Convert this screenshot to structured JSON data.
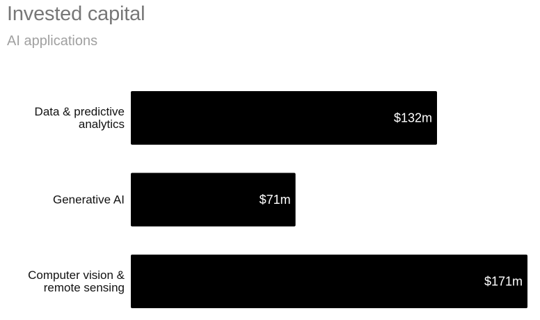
{
  "header": {
    "title": "Invested capital",
    "subtitle": "AI applications"
  },
  "chart_data": {
    "type": "bar",
    "orientation": "horizontal",
    "title": "Invested capital",
    "subtitle": "AI applications",
    "categories": [
      [
        "Data & predictive",
        "analytics"
      ],
      [
        "Generative AI"
      ],
      [
        "Computer vision &",
        "remote sensing"
      ]
    ],
    "values": [
      132,
      71,
      171
    ],
    "value_labels": [
      "$132m",
      "$71m",
      "$171m"
    ],
    "xlim": [
      0,
      171
    ],
    "grid": false,
    "bar_color": "#000000",
    "label_color": "#ffffff"
  }
}
